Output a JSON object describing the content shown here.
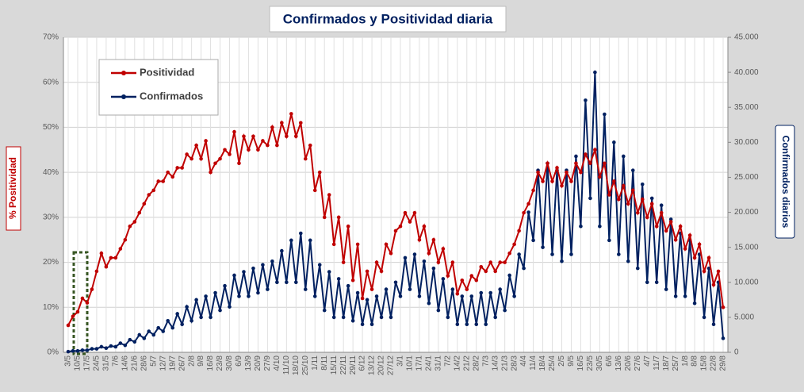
{
  "chart_data": {
    "type": "line",
    "title": "Confirmados  y Positividad  diaria",
    "ylabel": "% Positividad",
    "y2label": "Confirmados diarios",
    "categories": [
      "3/5",
      null,
      "10/5",
      null,
      "17/5",
      null,
      "24/5",
      null,
      "31/5",
      null,
      "7/6",
      null,
      "14/6",
      null,
      "21/6",
      null,
      "28/6",
      null,
      "5/7",
      null,
      "12/7",
      null,
      "19/7",
      null,
      "26/7",
      null,
      "2/8",
      null,
      "9/8",
      null,
      "16/8",
      null,
      "23/8",
      null,
      "30/8",
      null,
      "6/9",
      null,
      "13/9",
      null,
      "20/9",
      null,
      "27/9",
      null,
      "4/10",
      null,
      "11/10",
      null,
      "18/10",
      null,
      "25/10",
      null,
      "1/11",
      null,
      "8/11",
      null,
      "15/11",
      null,
      "22/11",
      null,
      "29/11",
      null,
      "6/12",
      null,
      "13/12",
      null,
      "20/12",
      null,
      "27/12",
      null,
      "3/1",
      null,
      "10/1",
      null,
      "17/1",
      null,
      "24/1",
      null,
      "31/1",
      null,
      "7/2",
      null,
      "14/2",
      null,
      "21/2",
      null,
      "28/2",
      null,
      "7/3",
      null,
      "14/3",
      null,
      "21/3",
      null,
      "28/3",
      null,
      "4/4",
      null,
      "11/4",
      null,
      "18/4",
      null,
      "25/4",
      null,
      "2/5",
      null,
      "9/5",
      null,
      "16/5",
      null,
      "23/5",
      null,
      "30/5",
      null,
      "6/6",
      null,
      "13/6",
      null,
      "20/6",
      null,
      "27/6",
      null,
      "4/7",
      null,
      "11/7",
      null,
      "18/7",
      null,
      "25/7",
      null,
      "1/8",
      null,
      "8/8",
      null,
      "15/8",
      null,
      "22/8",
      null,
      "29/8"
    ],
    "series": [
      {
        "name": "Positividad",
        "color": "#c00000",
        "axis": "y",
        "values": [
          6,
          8,
          9,
          12,
          11,
          14,
          18,
          22,
          19,
          21,
          21,
          23,
          25,
          28,
          29,
          31,
          33,
          35,
          36,
          38,
          38,
          40,
          39,
          41,
          41,
          44,
          43,
          46,
          43,
          47,
          40,
          42,
          43,
          45,
          44,
          49,
          42,
          48,
          45,
          48,
          45,
          47,
          46,
          50,
          46,
          51,
          48,
          53,
          48,
          51,
          43,
          46,
          36,
          40,
          30,
          35,
          24,
          30,
          20,
          28,
          16,
          24,
          12,
          18,
          14,
          20,
          18,
          24,
          22,
          27,
          28,
          31,
          29,
          31,
          25,
          28,
          22,
          25,
          20,
          23,
          17,
          20,
          13,
          16,
          14,
          17,
          16,
          19,
          18,
          20,
          18,
          20,
          20,
          22,
          24,
          27,
          31,
          33,
          36,
          40,
          38,
          42,
          38,
          41,
          37,
          40,
          38,
          42,
          40,
          44,
          42,
          45,
          39,
          42,
          35,
          38,
          34,
          37,
          33,
          36,
          31,
          34,
          30,
          33,
          28,
          31,
          27,
          29,
          25,
          28,
          23,
          26,
          21,
          24,
          18,
          21,
          15,
          18,
          10
        ]
      },
      {
        "name": "Confirmados",
        "color": "#002060",
        "axis": "y2",
        "values": [
          100,
          200,
          200,
          300,
          300,
          500,
          500,
          800,
          600,
          900,
          800,
          1300,
          1000,
          1800,
          1500,
          2500,
          2000,
          3000,
          2500,
          3500,
          3000,
          4500,
          3500,
          5500,
          4000,
          6500,
          4500,
          7500,
          5000,
          8000,
          5000,
          8500,
          6000,
          9500,
          6500,
          11000,
          8000,
          11500,
          8000,
          12000,
          8500,
          12500,
          9000,
          13000,
          10000,
          14500,
          10000,
          16000,
          10000,
          17000,
          9000,
          16000,
          8000,
          12500,
          6000,
          11500,
          5000,
          10500,
          5000,
          9500,
          4500,
          8500,
          4000,
          7500,
          4000,
          8000,
          5000,
          9000,
          5000,
          10000,
          8000,
          13500,
          9000,
          14000,
          8000,
          13000,
          7000,
          12000,
          6000,
          10500,
          5000,
          9000,
          4000,
          8000,
          4000,
          8000,
          4000,
          8500,
          4000,
          8500,
          5000,
          9000,
          6000,
          11000,
          8000,
          14000,
          12000,
          20000,
          16000,
          26000,
          15000,
          27000,
          14000,
          26000,
          13000,
          26000,
          14000,
          28000,
          18000,
          36000,
          22000,
          40000,
          18000,
          34000,
          16000,
          30000,
          14000,
          28000,
          13000,
          26000,
          12000,
          24000,
          10000,
          22000,
          10000,
          21000,
          9000,
          19000,
          8000,
          17000,
          8000,
          16000,
          7000,
          14000,
          5000,
          12000,
          4000,
          10000,
          2000
        ]
      }
    ],
    "ylim": [
      0,
      70
    ],
    "yticks": [
      {
        "value": 0,
        "label": "0%"
      },
      {
        "value": 10,
        "label": "10%"
      },
      {
        "value": 20,
        "label": "20%"
      },
      {
        "value": 30,
        "label": "30%"
      },
      {
        "value": 40,
        "label": "40%"
      },
      {
        "value": 50,
        "label": "50%"
      },
      {
        "value": 60,
        "label": "60%"
      },
      {
        "value": 70,
        "label": "70%"
      }
    ],
    "y2lim": [
      0,
      45000
    ],
    "y2ticks": [
      0,
      {
        "value": 5000,
        "label": "5.000"
      },
      {
        "value": 10000,
        "label": "10.000"
      },
      {
        "value": 15000,
        "label": "15.000"
      },
      {
        "value": 20000,
        "label": "20.000"
      },
      {
        "value": 25000,
        "label": "25.000"
      },
      {
        "value": 30000,
        "label": "30.000"
      },
      {
        "value": 35000,
        "label": "35.000"
      },
      {
        "value": 40000,
        "label": "40.000"
      },
      {
        "value": 45000,
        "label": "45.000"
      }
    ],
    "grid": true,
    "legend": "upper left"
  }
}
